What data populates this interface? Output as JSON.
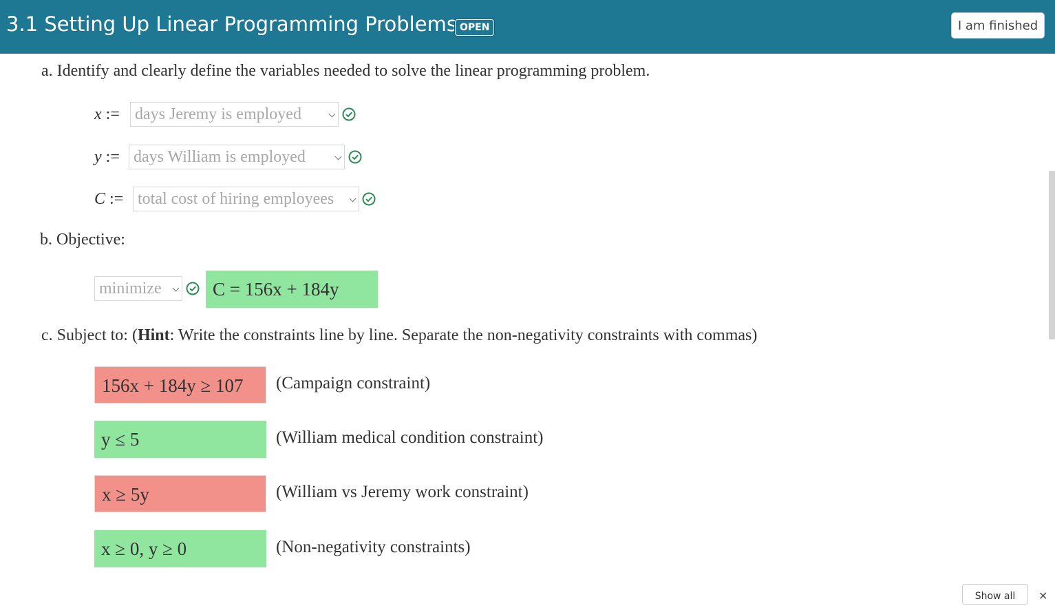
{
  "header": {
    "title": "3.1 Setting Up Linear Programming Problems",
    "badge": "OPEN",
    "finish_button": "I am finished"
  },
  "part_a": {
    "prompt": "a. Identify and clearly define the variables needed to solve the linear programming problem.",
    "variables": [
      {
        "symbol": "x",
        "assign": " :=",
        "selected": "days Jeremy is employed",
        "status": "correct"
      },
      {
        "symbol": "y",
        "assign": " :=",
        "selected": "days William is employed",
        "status": "correct"
      },
      {
        "symbol": "C",
        "assign": " :=",
        "selected": "total cost of hiring employees",
        "status": "correct"
      }
    ]
  },
  "part_b": {
    "prompt": "b. Objective:",
    "direction": "minimize",
    "direction_status": "correct",
    "objective": "C = 156x + 184y",
    "objective_status": "correct"
  },
  "part_c": {
    "prompt_prefix": "c. Subject to: (",
    "hint_word": "Hint",
    "prompt_suffix": ": Write the constraints line by line. Separate the non-negativity constraints with commas)",
    "constraints": [
      {
        "expression": "156x + 184y ≥ 107",
        "label": "(Campaign constraint)",
        "status": "incorrect"
      },
      {
        "expression": "y ≤ 5",
        "label": "(William medical condition constraint)",
        "status": "correct"
      },
      {
        "expression": "x ≥ 5y",
        "label": "(William vs Jeremy work constraint)",
        "status": "incorrect"
      },
      {
        "expression": "x ≥ 0, y ≥ 0",
        "label": "(Non-negativity constraints)",
        "status": "correct"
      }
    ]
  },
  "footer": {
    "show_all": "Show all",
    "close": "✕"
  },
  "colors": {
    "header_bg": "#1e7894",
    "correct_bg": "#90e59f",
    "incorrect_bg": "#f2908a",
    "check_green": "#2e8b57"
  },
  "icons": {
    "check": "check-circle-icon",
    "dropdown": "chevron-down-icon",
    "close": "close-icon"
  }
}
